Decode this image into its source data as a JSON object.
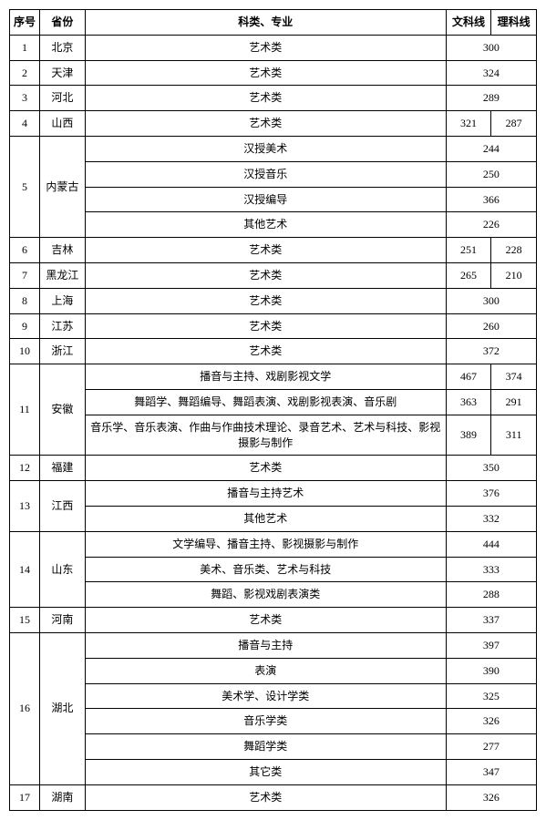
{
  "header": {
    "idx": "序号",
    "province": "省份",
    "category": "科类、专业",
    "wenke": "文科线",
    "like": "理科线"
  },
  "rows": [
    {
      "idx": "1",
      "province": "北京",
      "cats": [
        {
          "name": "艺术类",
          "merged": "300"
        }
      ]
    },
    {
      "idx": "2",
      "province": "天津",
      "cats": [
        {
          "name": "艺术类",
          "merged": "324"
        }
      ]
    },
    {
      "idx": "3",
      "province": "河北",
      "cats": [
        {
          "name": "艺术类",
          "merged": "289"
        }
      ]
    },
    {
      "idx": "4",
      "province": "山西",
      "cats": [
        {
          "name": "艺术类",
          "wk": "321",
          "lk": "287"
        }
      ]
    },
    {
      "idx": "5",
      "province": "内蒙古",
      "cats": [
        {
          "name": "汉授美术",
          "merged": "244"
        },
        {
          "name": "汉授音乐",
          "merged": "250"
        },
        {
          "name": "汉授编导",
          "merged": "366"
        },
        {
          "name": "其他艺术",
          "merged": "226"
        }
      ]
    },
    {
      "idx": "6",
      "province": "吉林",
      "cats": [
        {
          "name": "艺术类",
          "wk": "251",
          "lk": "228"
        }
      ]
    },
    {
      "idx": "7",
      "province": "黑龙江",
      "cats": [
        {
          "name": "艺术类",
          "wk": "265",
          "lk": "210"
        }
      ]
    },
    {
      "idx": "8",
      "province": "上海",
      "cats": [
        {
          "name": "艺术类",
          "merged": "300"
        }
      ]
    },
    {
      "idx": "9",
      "province": "江苏",
      "cats": [
        {
          "name": "艺术类",
          "merged": "260"
        }
      ]
    },
    {
      "idx": "10",
      "province": "浙江",
      "cats": [
        {
          "name": "艺术类",
          "merged": "372"
        }
      ]
    },
    {
      "idx": "11",
      "province": "安徽",
      "cats": [
        {
          "name": "播音与主持、戏剧影视文学",
          "wk": "467",
          "lk": "374"
        },
        {
          "name": "舞蹈学、舞蹈编导、舞蹈表演、戏剧影视表演、音乐剧",
          "wk": "363",
          "lk": "291"
        },
        {
          "name": "音乐学、音乐表演、作曲与作曲技术理论、录音艺术、艺术与科技、影视摄影与制作",
          "wk": "389",
          "lk": "311"
        }
      ]
    },
    {
      "idx": "12",
      "province": "福建",
      "cats": [
        {
          "name": "艺术类",
          "merged": "350"
        }
      ]
    },
    {
      "idx": "13",
      "province": "江西",
      "cats": [
        {
          "name": "播音与主持艺术",
          "merged": "376"
        },
        {
          "name": "其他艺术",
          "merged": "332"
        }
      ]
    },
    {
      "idx": "14",
      "province": "山东",
      "cats": [
        {
          "name": "文学编导、播音主持、影视摄影与制作",
          "merged": "444"
        },
        {
          "name": "美术、音乐类、艺术与科技",
          "merged": "333"
        },
        {
          "name": "舞蹈、影视戏剧表演类",
          "merged": "288"
        }
      ]
    },
    {
      "idx": "15",
      "province": "河南",
      "cats": [
        {
          "name": "艺术类",
          "merged": "337"
        }
      ]
    },
    {
      "idx": "16",
      "province": "湖北",
      "cats": [
        {
          "name": "播音与主持",
          "merged": "397"
        },
        {
          "name": "表演",
          "merged": "390"
        },
        {
          "name": "美术学、设计学类",
          "merged": "325"
        },
        {
          "name": "音乐学类",
          "merged": "326"
        },
        {
          "name": "舞蹈学类",
          "merged": "277"
        },
        {
          "name": "其它类",
          "merged": "347"
        }
      ]
    },
    {
      "idx": "17",
      "province": "湖南",
      "cats": [
        {
          "name": "艺术类",
          "merged": "326"
        }
      ]
    }
  ]
}
